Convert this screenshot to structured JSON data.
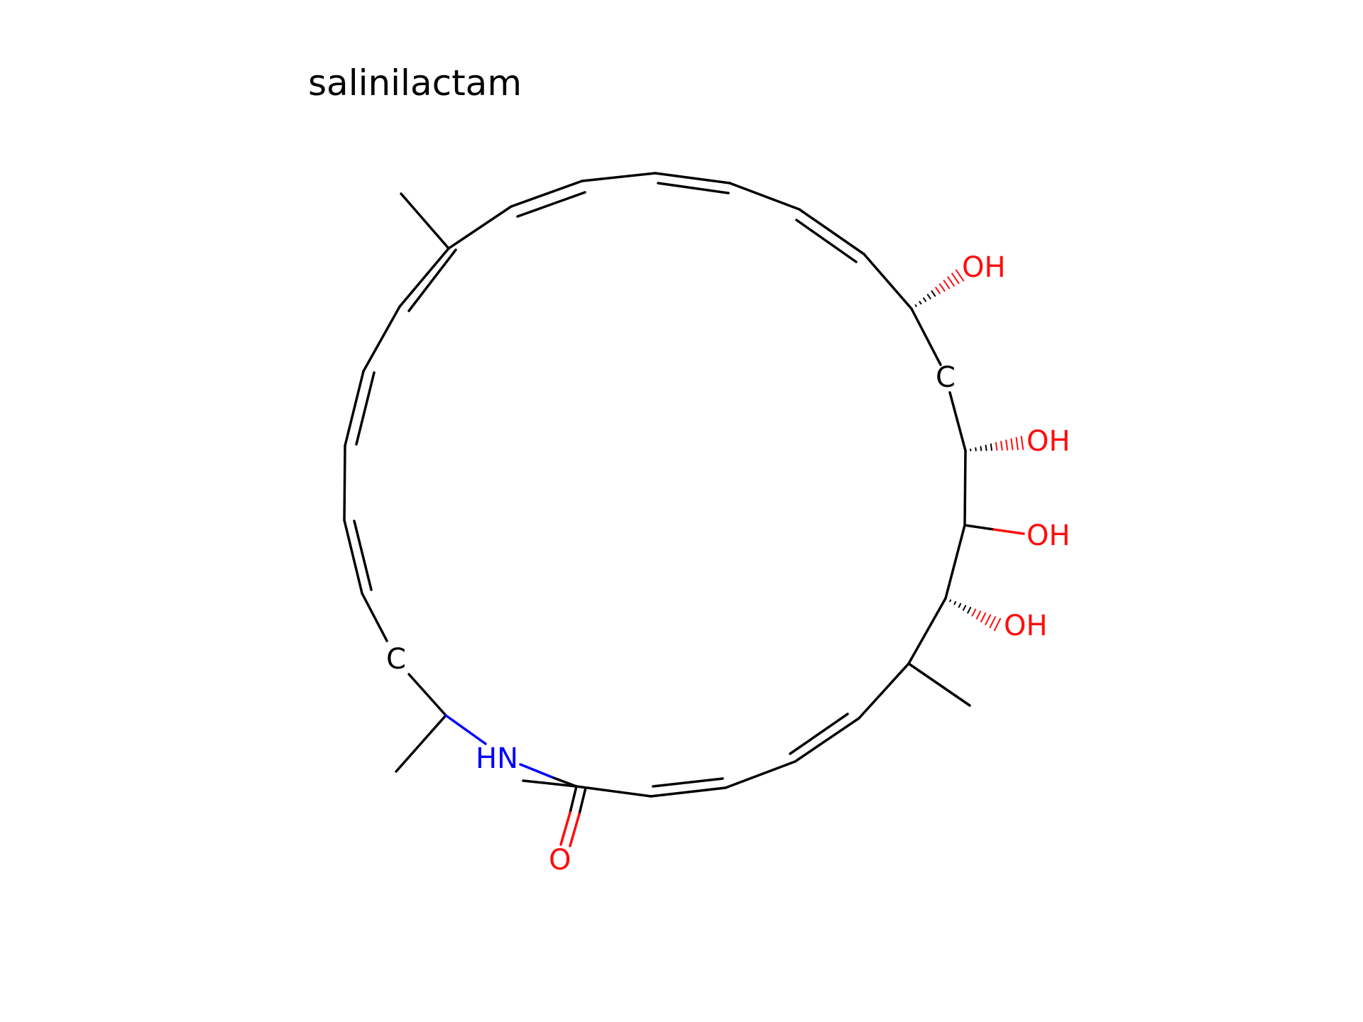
{
  "title": "salinilactam",
  "atoms": {
    "hydroxyl_1": "OH",
    "hydroxyl_2": "OH",
    "hydroxyl_3": "OH",
    "hydroxyl_4": "OH",
    "carbon_upper": "C",
    "carbon_lower": "C",
    "amide_nitrogen": "HN",
    "carbonyl_oxygen": "O"
  },
  "colors": {
    "bond": "#000000",
    "oxygen": "#ff0d0d",
    "nitrogen": "#0000ff",
    "background": "#ffffff"
  }
}
